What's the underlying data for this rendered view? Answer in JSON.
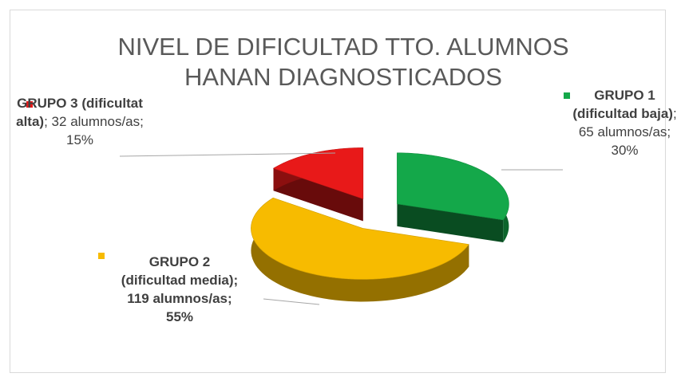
{
  "chart_data": {
    "type": "pie3d",
    "title": "NIVEL DE DIFICULTAD TTO. ALUMNOS HANAN DIAGNOSTICADOS",
    "categories": [
      "GRUPO 1 (dificultad baja)",
      "GRUPO 2 (dificultad media)",
      "GRUPO 3 (dificultat alta)"
    ],
    "values": [
      65,
      119,
      32
    ],
    "unit": "alumnos/as",
    "label_separator": ";",
    "percentages": [
      30,
      55,
      15
    ],
    "percentage_labels": [
      "30%",
      "55%",
      "15%"
    ],
    "colors": [
      "#14a84a",
      "#f7bb00",
      "#e81919"
    ]
  }
}
